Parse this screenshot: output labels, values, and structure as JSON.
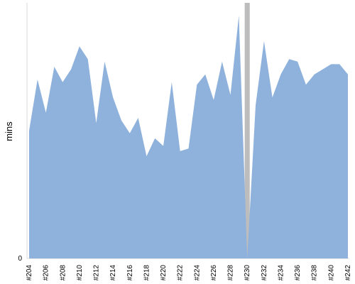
{
  "chart_data": {
    "type": "area",
    "ylabel": "mins",
    "xlabel": "",
    "title": "",
    "grid": false,
    "colors": {
      "area": "#8fb2dc",
      "gap": "#bdbdbd",
      "axis": "#d9d9d9"
    },
    "ylim": [
      0,
      100
    ],
    "ytick_labels": [
      "0"
    ],
    "xtick_labels": [
      "#204",
      "#206",
      "#208",
      "#210",
      "#212",
      "#214",
      "#216",
      "#218",
      "#220",
      "#222",
      "#224",
      "#226",
      "#228",
      "#230",
      "#232",
      "#234",
      "#236",
      "#238",
      "#240",
      "#242"
    ],
    "builds": [
      204,
      205,
      206,
      207,
      208,
      209,
      210,
      211,
      212,
      213,
      214,
      215,
      216,
      217,
      218,
      219,
      220,
      221,
      222,
      223,
      224,
      225,
      226,
      227,
      228,
      229,
      230,
      231,
      232,
      233,
      234,
      235,
      236,
      237,
      238,
      239,
      240,
      241,
      242
    ],
    "values": [
      50,
      70,
      57,
      75,
      69,
      74,
      83,
      78,
      53,
      77,
      63,
      54,
      49,
      55,
      40,
      47,
      44,
      69,
      42,
      43,
      68,
      72,
      62,
      77,
      64,
      95,
      0,
      60,
      85,
      63,
      72,
      78,
      77,
      68,
      72,
      74,
      76,
      76,
      72
    ]
  }
}
